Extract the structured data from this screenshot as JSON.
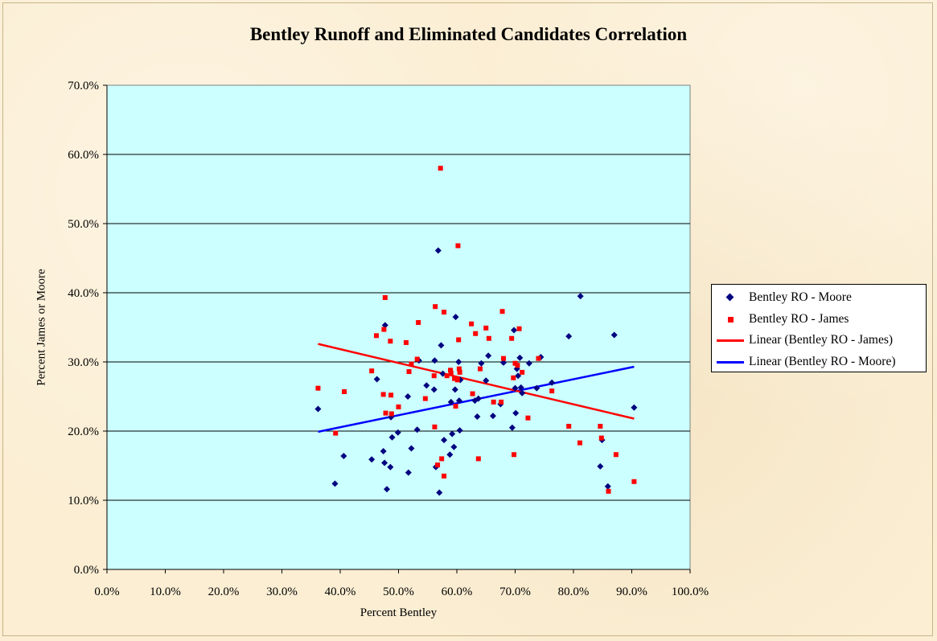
{
  "chart_data": {
    "type": "scatter",
    "title": "Bentley Runoff and Eliminated Candidates Correlation",
    "xlabel": "Percent Bentley",
    "ylabel": "Percent James or Moore",
    "xlim": [
      0,
      1
    ],
    "ylim": [
      0,
      0.7
    ],
    "x_ticks": [
      "0.0%",
      "10.0%",
      "20.0%",
      "30.0%",
      "40.0%",
      "50.0%",
      "60.0%",
      "70.0%",
      "80.0%",
      "90.0%",
      "100.0%"
    ],
    "y_ticks": [
      "0.0%",
      "10.0%",
      "20.0%",
      "30.0%",
      "40.0%",
      "50.0%",
      "60.0%",
      "70.0%"
    ],
    "grid": "horizontal major gridlines",
    "plot_background": "#ccffff",
    "legend_position": "right",
    "legend": [
      {
        "label": "Bentley RO - Moore",
        "kind": "diamond",
        "color": "#000080"
      },
      {
        "label": "Bentley RO - James",
        "kind": "square",
        "color": "#ff0000"
      },
      {
        "label": "Linear (Bentley RO - James)",
        "kind": "line",
        "color": "#ff0000"
      },
      {
        "label": "Linear (Bentley RO - Moore)",
        "kind": "line",
        "color": "#0000ff"
      }
    ],
    "series": [
      {
        "name": "Bentley RO - Moore",
        "marker": "diamond",
        "color": "#000080",
        "points": [
          [
            0.362,
            0.232
          ],
          [
            0.391,
            0.124
          ],
          [
            0.406,
            0.164
          ],
          [
            0.454,
            0.159
          ],
          [
            0.463,
            0.275
          ],
          [
            0.474,
            0.171
          ],
          [
            0.476,
            0.154
          ],
          [
            0.477,
            0.353
          ],
          [
            0.48,
            0.116
          ],
          [
            0.486,
            0.148
          ],
          [
            0.487,
            0.22
          ],
          [
            0.489,
            0.191
          ],
          [
            0.499,
            0.198
          ],
          [
            0.516,
            0.25
          ],
          [
            0.517,
            0.14
          ],
          [
            0.522,
            0.175
          ],
          [
            0.532,
            0.202
          ],
          [
            0.535,
            0.302
          ],
          [
            0.548,
            0.266
          ],
          [
            0.561,
            0.26
          ],
          [
            0.562,
            0.302
          ],
          [
            0.564,
            0.148
          ],
          [
            0.568,
            0.461
          ],
          [
            0.57,
            0.111
          ],
          [
            0.573,
            0.324
          ],
          [
            0.576,
            0.283
          ],
          [
            0.578,
            0.187
          ],
          [
            0.588,
            0.166
          ],
          [
            0.59,
            0.242
          ],
          [
            0.592,
            0.196
          ],
          [
            0.595,
            0.177
          ],
          [
            0.597,
            0.26
          ],
          [
            0.598,
            0.365
          ],
          [
            0.603,
            0.3
          ],
          [
            0.604,
            0.244
          ],
          [
            0.605,
            0.201
          ],
          [
            0.606,
            0.274
          ],
          [
            0.631,
            0.244
          ],
          [
            0.635,
            0.221
          ],
          [
            0.637,
            0.247
          ],
          [
            0.642,
            0.298
          ],
          [
            0.65,
            0.273
          ],
          [
            0.654,
            0.309
          ],
          [
            0.662,
            0.222
          ],
          [
            0.675,
            0.239
          ],
          [
            0.68,
            0.299
          ],
          [
            0.695,
            0.205
          ],
          [
            0.698,
            0.346
          ],
          [
            0.7,
            0.262
          ],
          [
            0.701,
            0.226
          ],
          [
            0.703,
            0.29
          ],
          [
            0.705,
            0.28
          ],
          [
            0.708,
            0.306
          ],
          [
            0.71,
            0.263
          ],
          [
            0.712,
            0.255
          ],
          [
            0.724,
            0.298
          ],
          [
            0.737,
            0.262
          ],
          [
            0.744,
            0.307
          ],
          [
            0.763,
            0.27
          ],
          [
            0.792,
            0.337
          ],
          [
            0.812,
            0.395
          ],
          [
            0.846,
            0.149
          ],
          [
            0.849,
            0.187
          ],
          [
            0.859,
            0.12
          ],
          [
            0.87,
            0.339
          ],
          [
            0.904,
            0.234
          ]
        ],
        "trendline": {
          "name": "Linear (Bentley RO - Moore)",
          "color": "#0000ff",
          "from": [
            0.362,
            0.199
          ],
          "to": [
            0.904,
            0.293
          ]
        }
      },
      {
        "name": "Bentley RO - James",
        "marker": "square",
        "color": "#ff0000",
        "points": [
          [
            0.362,
            0.262
          ],
          [
            0.392,
            0.197
          ],
          [
            0.407,
            0.257
          ],
          [
            0.454,
            0.287
          ],
          [
            0.462,
            0.338
          ],
          [
            0.474,
            0.253
          ],
          [
            0.475,
            0.347
          ],
          [
            0.477,
            0.393
          ],
          [
            0.478,
            0.226
          ],
          [
            0.486,
            0.33
          ],
          [
            0.487,
            0.252
          ],
          [
            0.488,
            0.225
          ],
          [
            0.5,
            0.235
          ],
          [
            0.513,
            0.328
          ],
          [
            0.518,
            0.286
          ],
          [
            0.522,
            0.297
          ],
          [
            0.532,
            0.304
          ],
          [
            0.534,
            0.357
          ],
          [
            0.546,
            0.247
          ],
          [
            0.561,
            0.28
          ],
          [
            0.562,
            0.206
          ],
          [
            0.563,
            0.38
          ],
          [
            0.567,
            0.151
          ],
          [
            0.572,
            0.58
          ],
          [
            0.574,
            0.16
          ],
          [
            0.578,
            0.372
          ],
          [
            0.578,
            0.135
          ],
          [
            0.583,
            0.28
          ],
          [
            0.589,
            0.288
          ],
          [
            0.59,
            0.284
          ],
          [
            0.596,
            0.276
          ],
          [
            0.598,
            0.236
          ],
          [
            0.601,
            0.274
          ],
          [
            0.602,
            0.468
          ],
          [
            0.603,
            0.332
          ],
          [
            0.604,
            0.29
          ],
          [
            0.605,
            0.285
          ],
          [
            0.625,
            0.355
          ],
          [
            0.627,
            0.254
          ],
          [
            0.632,
            0.341
          ],
          [
            0.637,
            0.16
          ],
          [
            0.64,
            0.29
          ],
          [
            0.65,
            0.349
          ],
          [
            0.655,
            0.334
          ],
          [
            0.663,
            0.242
          ],
          [
            0.676,
            0.242
          ],
          [
            0.678,
            0.373
          ],
          [
            0.68,
            0.305
          ],
          [
            0.694,
            0.334
          ],
          [
            0.697,
            0.277
          ],
          [
            0.698,
            0.166
          ],
          [
            0.7,
            0.298
          ],
          [
            0.704,
            0.295
          ],
          [
            0.707,
            0.348
          ],
          [
            0.712,
            0.285
          ],
          [
            0.722,
            0.219
          ],
          [
            0.74,
            0.305
          ],
          [
            0.763,
            0.258
          ],
          [
            0.792,
            0.207
          ],
          [
            0.811,
            0.183
          ],
          [
            0.846,
            0.207
          ],
          [
            0.848,
            0.19
          ],
          [
            0.86,
            0.113
          ],
          [
            0.873,
            0.166
          ],
          [
            0.904,
            0.127
          ]
        ],
        "trendline": {
          "name": "Linear (Bentley RO - James)",
          "color": "#ff0000",
          "from": [
            0.362,
            0.326
          ],
          "to": [
            0.904,
            0.218
          ]
        }
      }
    ]
  }
}
